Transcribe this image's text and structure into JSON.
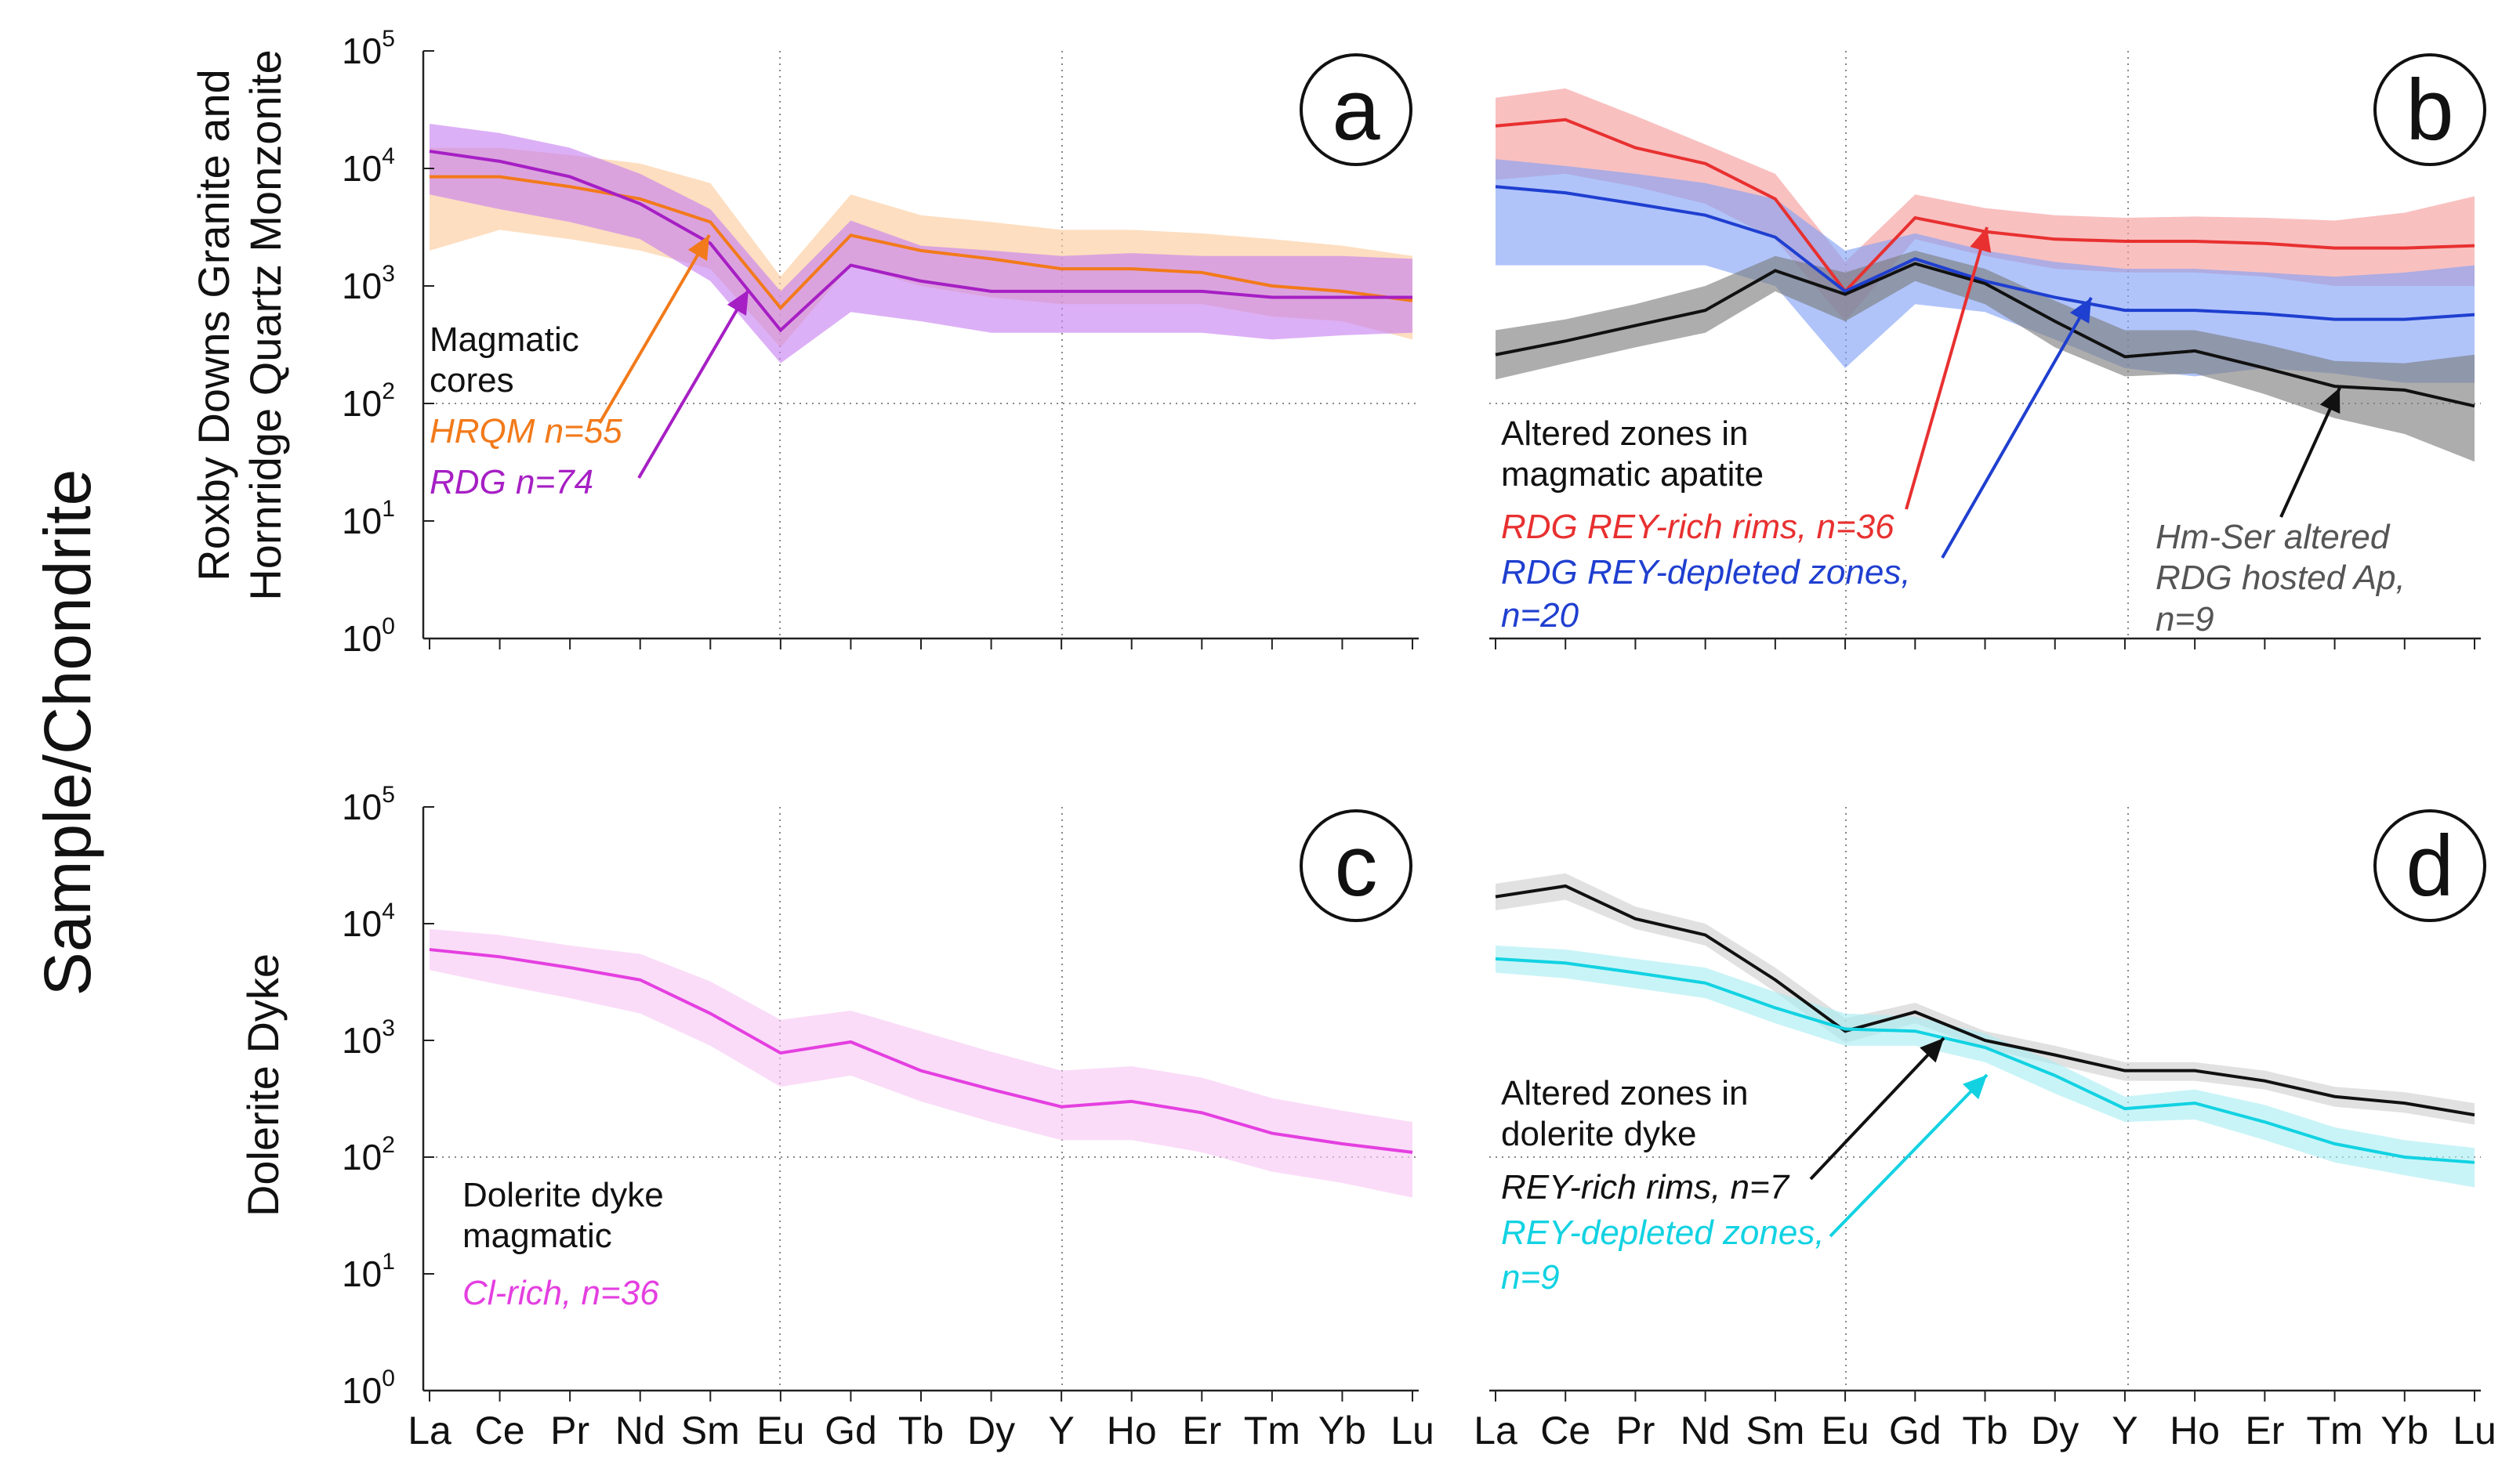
{
  "figure": {
    "ylabel_main": "Sample/Chondrite",
    "ylabel_top_line1": "Roxby Downs Granite and",
    "ylabel_top_line2": "Hornridge Quartz Monzonite",
    "ylabel_bottom": "Dolerite Dyke"
  },
  "elements": [
    "La",
    "Ce",
    "Pr",
    "Nd",
    "Sm",
    "Eu",
    "Gd",
    "Tb",
    "Dy",
    "Y",
    "Ho",
    "Er",
    "Tm",
    "Yb",
    "Lu"
  ],
  "colors": {
    "purple": "#a61fc4",
    "purple_band": "#c77ff0",
    "orange": "#f27a1a",
    "orange_band": "#fbc99a",
    "red": "#e83030",
    "red_band": "#f59a9a",
    "blue": "#1f3fd0",
    "blue_band": "#7f9ff7",
    "black": "#111111",
    "gray_band": "#7a7a7a",
    "light_gray_band": "#cfcfcf",
    "magenta": "#e43fe0",
    "magenta_band": "#f7c6f4",
    "cyan": "#12d2e2",
    "cyan_band": "#a8eef2"
  },
  "chart_data": [
    {
      "type": "line",
      "panel": "a",
      "y_scale": "log",
      "ylim": [
        1,
        100000
      ],
      "y_ticks": [
        "10^0",
        "10^1",
        "10^2",
        "10^3",
        "10^4",
        "10^5"
      ],
      "annotation_header": [
        "Magmatic",
        "cores"
      ],
      "series": [
        {
          "name": "HRQM n=55",
          "color": "orange",
          "values": [
            8500,
            8500,
            7000,
            5500,
            3500,
            650,
            2700,
            2000,
            1700,
            1400,
            1400,
            1300,
            1000,
            900,
            750
          ],
          "band_low": [
            2000,
            3000,
            2500,
            2000,
            1400,
            300,
            1500,
            1000,
            800,
            700,
            700,
            700,
            550,
            500,
            350
          ],
          "band_high": [
            15000,
            15000,
            13000,
            11000,
            7500,
            1200,
            6000,
            4000,
            3500,
            3000,
            3000,
            2800,
            2500,
            2200,
            1800
          ]
        },
        {
          "name": "RDG n=74",
          "color": "purple",
          "values": [
            14000,
            11500,
            8500,
            5000,
            2300,
            420,
            1500,
            1100,
            900,
            900,
            900,
            900,
            800,
            800,
            800
          ],
          "band_low": [
            6000,
            4500,
            3500,
            2500,
            1100,
            220,
            600,
            500,
            400,
            400,
            400,
            400,
            350,
            380,
            400
          ],
          "band_high": [
            24000,
            20000,
            15000,
            9000,
            4500,
            900,
            3600,
            2200,
            2000,
            1800,
            1900,
            1800,
            1800,
            1800,
            1700
          ]
        }
      ]
    },
    {
      "type": "line",
      "panel": "b",
      "y_scale": "log",
      "ylim": [
        1,
        100000
      ],
      "annotation_header": [
        "Altered zones in",
        "magmatic apatite"
      ],
      "series": [
        {
          "name": "RDG REY-rich rims, n=36",
          "color": "red",
          "values": [
            23000,
            26000,
            15000,
            11000,
            5500,
            900,
            3800,
            2900,
            2500,
            2400,
            2400,
            2300,
            2100,
            2100,
            2200
          ],
          "band_low": [
            8000,
            9000,
            7000,
            5000,
            2500,
            500,
            2500,
            1800,
            1400,
            1300,
            1300,
            1200,
            1000,
            1000,
            1000
          ],
          "band_high": [
            40000,
            48000,
            28000,
            16000,
            9000,
            1600,
            6000,
            4600,
            4000,
            3800,
            3900,
            3800,
            3600,
            4200,
            5800
          ]
        },
        {
          "name": "RDG REY-depleted zones, n=20",
          "color": "blue",
          "values": [
            7000,
            6200,
            5000,
            4000,
            2600,
            900,
            1700,
            1100,
            800,
            620,
            620,
            580,
            520,
            520,
            570
          ],
          "band_low": [
            1500,
            1500,
            1500,
            1500,
            1000,
            200,
            700,
            600,
            350,
            200,
            170,
            200,
            180,
            150,
            150
          ],
          "band_high": [
            12000,
            10500,
            9000,
            7500,
            5500,
            2000,
            2800,
            2000,
            1600,
            1400,
            1400,
            1300,
            1200,
            1300,
            1500
          ]
        },
        {
          "name": "Hm-Ser altered RDG hosted Ap, n=9",
          "color": "black",
          "values": [
            260,
            340,
            460,
            620,
            1350,
            850,
            1550,
            1050,
            500,
            250,
            280,
            200,
            140,
            130,
            95
          ],
          "band_low": [
            160,
            220,
            300,
            400,
            900,
            500,
            1100,
            700,
            300,
            170,
            180,
            120,
            75,
            55,
            32
          ],
          "band_high": [
            420,
            520,
            700,
            1000,
            1800,
            1300,
            2000,
            1400,
            750,
            420,
            420,
            320,
            230,
            220,
            260
          ]
        }
      ]
    },
    {
      "type": "line",
      "panel": "c",
      "y_scale": "log",
      "ylim": [
        1,
        100000
      ],
      "y_ticks": [
        "10^0",
        "10^1",
        "10^2",
        "10^3",
        "10^4",
        "10^5"
      ],
      "annotation_header": [
        "Dolerite dyke",
        "magmatic"
      ],
      "series": [
        {
          "name": "Cl-rich, n=36",
          "color": "magenta",
          "values": [
            6000,
            5200,
            4200,
            3300,
            1700,
            780,
            970,
            550,
            380,
            270,
            300,
            240,
            160,
            130,
            110
          ],
          "band_low": [
            4000,
            3000,
            2300,
            1700,
            900,
            400,
            500,
            300,
            200,
            140,
            140,
            110,
            75,
            60,
            45
          ],
          "band_high": [
            9000,
            8000,
            6500,
            5500,
            3200,
            1500,
            1800,
            1200,
            800,
            550,
            600,
            480,
            320,
            250,
            200
          ]
        }
      ]
    },
    {
      "type": "line",
      "panel": "d",
      "y_scale": "log",
      "ylim": [
        1,
        100000
      ],
      "annotation_header": [
        "Altered zones in",
        "dolerite dyke"
      ],
      "series": [
        {
          "name": "REY-rich rims, n=7",
          "color": "black",
          "values": [
            17000,
            21000,
            11000,
            8000,
            3300,
            1200,
            1750,
            1000,
            750,
            550,
            550,
            450,
            330,
            290,
            230
          ],
          "band_low": [
            13000,
            16000,
            9000,
            6500,
            2600,
            950,
            1400,
            850,
            620,
            450,
            450,
            380,
            270,
            240,
            190
          ],
          "band_high": [
            22000,
            27000,
            14000,
            10000,
            4200,
            1550,
            2100,
            1200,
            900,
            650,
            650,
            550,
            400,
            360,
            290
          ]
        },
        {
          "name": "REY-depleted zones, n=9",
          "color": "cyan",
          "values": [
            5000,
            4600,
            3800,
            3100,
            1900,
            1250,
            1200,
            870,
            500,
            260,
            290,
            200,
            130,
            100,
            90
          ],
          "band_low": [
            3800,
            3400,
            2800,
            2300,
            1400,
            900,
            900,
            650,
            350,
            200,
            210,
            140,
            90,
            70,
            55
          ],
          "band_high": [
            6500,
            6000,
            5000,
            4200,
            2600,
            1700,
            1600,
            1150,
            650,
            330,
            380,
            280,
            180,
            140,
            120
          ]
        }
      ]
    }
  ]
}
